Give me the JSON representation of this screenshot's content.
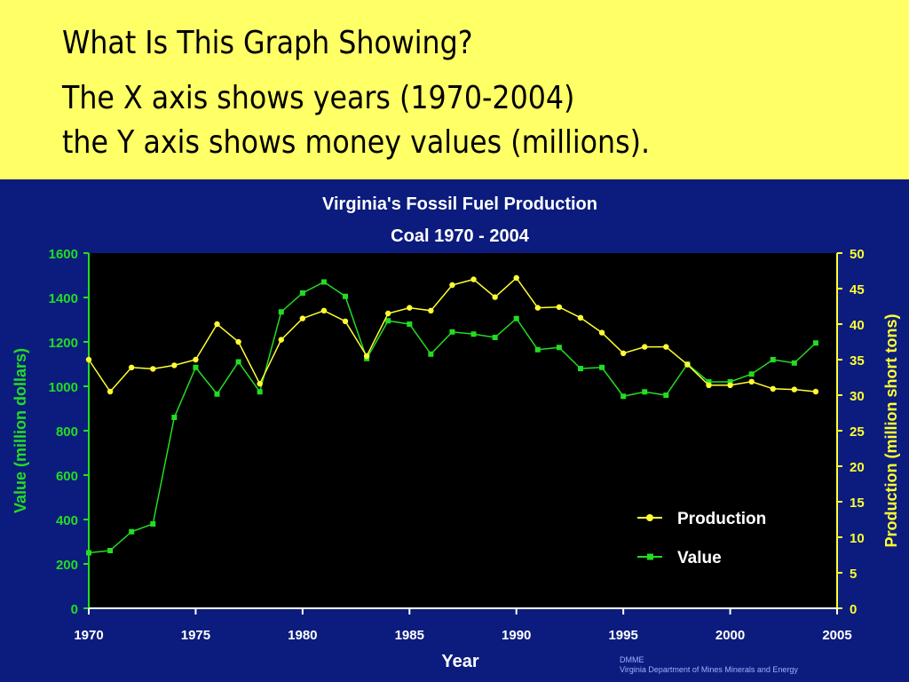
{
  "slide": {
    "title": "What Is This Graph Showing?",
    "line1": "The X axis shows years (1970-2004)",
    "line2": "the Y axis shows money values (millions)."
  },
  "credit": {
    "line1": "DMME",
    "line2": "Virginia Department of Mines Minerals and Energy"
  },
  "colors": {
    "slide_bg": "#ffff66",
    "panel_bg": "#0b1c7e",
    "plot_bg": "#000000",
    "value": "#22dd22",
    "production": "#ffff33"
  },
  "chart_data": {
    "type": "line",
    "title": "Virginia's Fossil Fuel Production",
    "subtitle": "Coal  1970 - 2004",
    "xlabel": "Year",
    "ylabel_left": "Value (million dollars)",
    "ylabel_right": "Production (million short tons)",
    "xlim": [
      1970,
      2005
    ],
    "ylim_left": [
      0,
      1600
    ],
    "ylim_right": [
      0,
      50
    ],
    "x_ticks": [
      1970,
      1975,
      1980,
      1985,
      1990,
      1995,
      2000,
      2005
    ],
    "y_ticks_left": [
      0,
      200,
      400,
      600,
      800,
      1000,
      1200,
      1400,
      1600
    ],
    "y_ticks_right": [
      0,
      5,
      10,
      15,
      20,
      25,
      30,
      35,
      40,
      45,
      50
    ],
    "grid": false,
    "legend_position": "lower-right",
    "x": [
      1970,
      1971,
      1972,
      1973,
      1974,
      1975,
      1976,
      1977,
      1978,
      1979,
      1980,
      1981,
      1982,
      1983,
      1984,
      1985,
      1986,
      1987,
      1988,
      1989,
      1990,
      1991,
      1992,
      1993,
      1994,
      1995,
      1996,
      1997,
      1998,
      1999,
      2000,
      2001,
      2002,
      2003,
      2004
    ],
    "series": [
      {
        "name": "Production",
        "axis": "right",
        "marker": "circle",
        "color": "#ffff33",
        "values": [
          35.0,
          30.5,
          33.9,
          33.7,
          34.2,
          35.0,
          40.0,
          37.5,
          31.6,
          37.8,
          40.8,
          41.9,
          40.4,
          35.5,
          41.5,
          42.3,
          41.9,
          45.5,
          46.3,
          43.8,
          46.5,
          42.3,
          42.4,
          40.9,
          38.8,
          35.9,
          36.8,
          36.8,
          34.3,
          31.4,
          31.4,
          31.9,
          30.9,
          30.8,
          30.5
        ]
      },
      {
        "name": "Value",
        "axis": "left",
        "marker": "square",
        "color": "#22dd22",
        "values": [
          250,
          260,
          345,
          380,
          860,
          1085,
          965,
          1110,
          975,
          1335,
          1420,
          1470,
          1405,
          1125,
          1295,
          1280,
          1145,
          1245,
          1235,
          1220,
          1305,
          1165,
          1175,
          1080,
          1085,
          955,
          975,
          960,
          1100,
          1020,
          1020,
          1055,
          1120,
          1105,
          1195
        ]
      }
    ]
  }
}
